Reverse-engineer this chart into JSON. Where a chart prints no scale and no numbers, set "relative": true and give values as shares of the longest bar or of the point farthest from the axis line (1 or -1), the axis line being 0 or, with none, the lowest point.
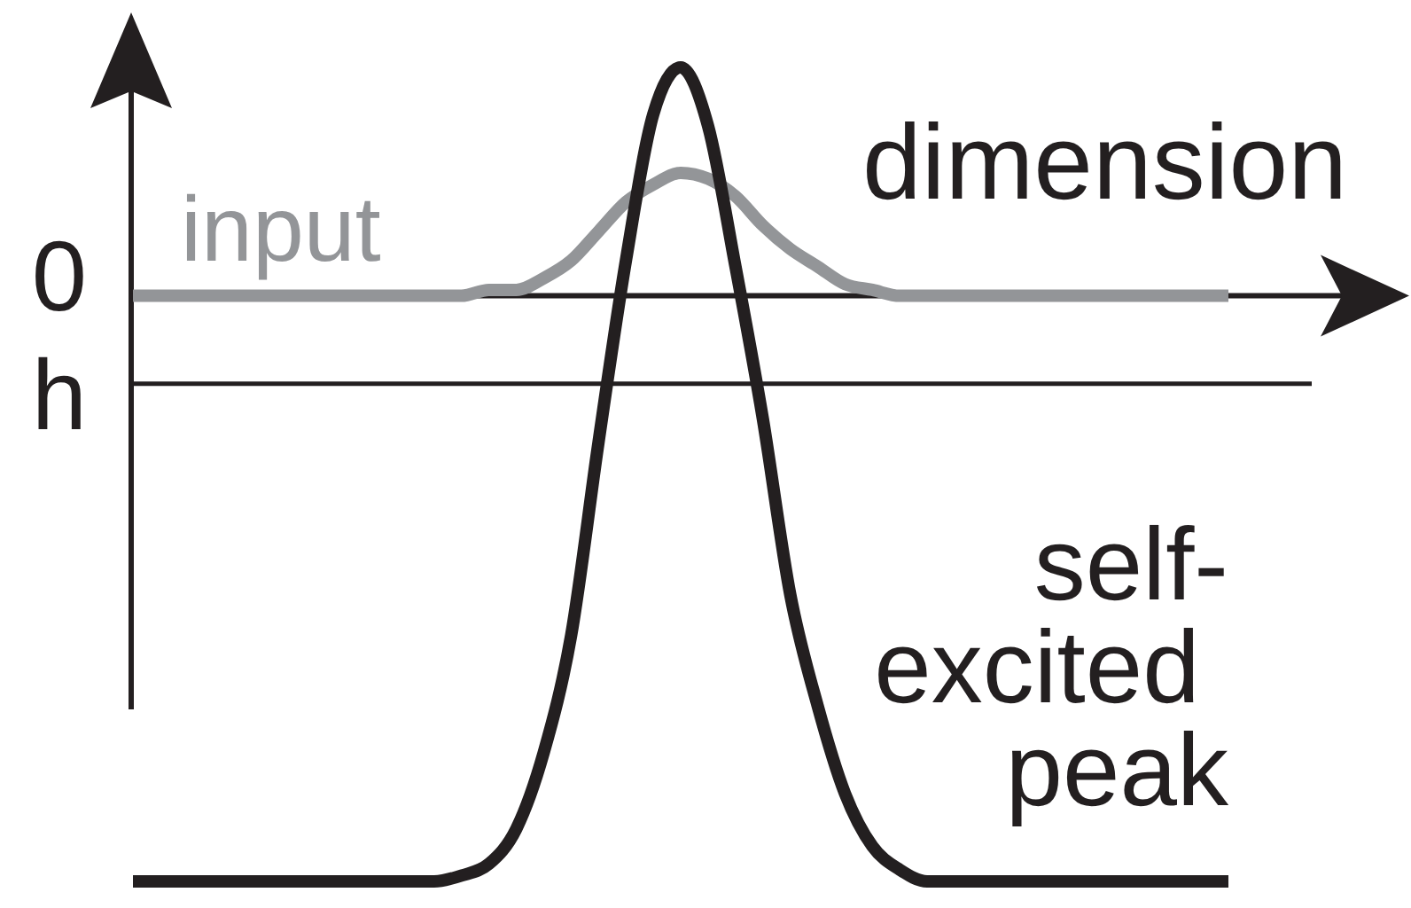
{
  "chart_data": {
    "type": "line",
    "relative": true,
    "xlabel": "dimension",
    "categories": [
      null,
      null,
      null,
      null,
      null,
      null,
      null,
      null,
      null,
      null,
      null,
      null,
      null,
      null,
      null,
      null,
      null,
      null,
      null,
      null,
      null,
      null,
      null,
      null,
      null,
      null,
      null,
      null,
      null,
      null,
      null,
      null,
      null,
      null,
      null,
      null,
      null,
      null,
      null,
      null,
      null
    ],
    "series": [
      {
        "name": "input",
        "color": "#939598",
        "values": [
          0,
          0,
          0,
          0,
          0,
          0,
          0,
          0,
          0,
          0,
          0,
          0,
          0,
          0.01,
          0.01,
          0.03,
          0.06,
          0.11,
          0.16,
          0.19,
          0.21,
          0.2,
          0.17,
          0.12,
          0.08,
          0.05,
          0.02,
          0.01,
          0,
          0,
          0,
          0,
          0,
          0,
          0,
          0,
          0,
          0,
          0,
          0,
          0
        ]
      },
      {
        "name": "self-excited peak",
        "color": "#231f20",
        "values": [
          -1,
          -1,
          -1,
          -1,
          -1,
          -1,
          -1,
          -1,
          -1,
          -1,
          -1,
          -1,
          -0.99,
          -0.97,
          -0.91,
          -0.78,
          -0.58,
          -0.25,
          0.06,
          0.31,
          0.39,
          0.29,
          0.05,
          -0.21,
          -0.51,
          -0.7,
          -0.85,
          -0.94,
          -0.98,
          -1,
          -1,
          -1,
          -1,
          -1,
          -1,
          -1,
          -1,
          -1,
          -1,
          -1,
          -1
        ]
      }
    ],
    "ref_lines": [
      {
        "axis": "y",
        "value": -0.15,
        "label": "h",
        "color": "#231f20"
      }
    ],
    "annotations": [
      "0"
    ]
  }
}
